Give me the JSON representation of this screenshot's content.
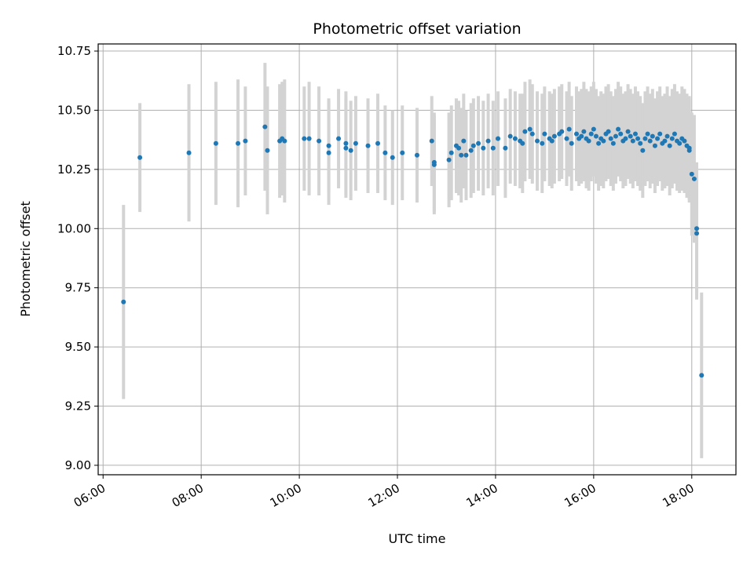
{
  "chart_data": {
    "type": "scatter",
    "title": "Photometric offset variation",
    "xlabel": "UTC time",
    "ylabel": "Photometric offset",
    "x_ticks": [
      "06:00",
      "08:00",
      "10:00",
      "12:00",
      "14:00",
      "16:00",
      "18:00"
    ],
    "y_ticks": [
      "9.00",
      "9.25",
      "9.50",
      "9.75",
      "10.00",
      "10.25",
      "10.50",
      "10.75"
    ],
    "xlim": [
      "05:54",
      "18:54"
    ],
    "ylim": [
      8.96,
      10.78
    ],
    "grid": true,
    "colors": {
      "point": "#1f77b4",
      "errorbar": "#d3d3d3",
      "grid": "#b0b0b0"
    },
    "series": [
      {
        "x": [
          "06:25",
          "06:45",
          "07:45",
          "08:18",
          "08:45",
          "08:54",
          "09:18",
          "09:21",
          "09:36",
          "09:39",
          "09:42",
          "10:06",
          "10:12",
          "10:24",
          "10:36",
          "10:36",
          "10:48",
          "10:57",
          "10:57",
          "11:03",
          "11:09",
          "11:24",
          "11:36",
          "11:45",
          "11:54",
          "12:06",
          "12:24",
          "12:42",
          "12:45",
          "12:45",
          "13:03",
          "13:06",
          "13:12",
          "13:15",
          "13:18",
          "13:21",
          "13:24",
          "13:30",
          "13:33",
          "13:39",
          "13:45",
          "13:51",
          "13:57",
          "14:03",
          "14:12",
          "14:18",
          "14:24",
          "14:30",
          "14:33",
          "14:36",
          "14:42",
          "14:45",
          "14:51",
          "14:57",
          "15:00",
          "15:06",
          "15:09",
          "15:12",
          "15:18",
          "15:21",
          "15:27",
          "15:30",
          "15:33",
          "15:39",
          "15:42",
          "15:45",
          "15:48",
          "15:51",
          "15:54",
          "15:57",
          "16:00",
          "16:03",
          "16:06",
          "16:09",
          "16:12",
          "16:15",
          "16:18",
          "16:21",
          "16:24",
          "16:27",
          "16:30",
          "16:33",
          "16:36",
          "16:39",
          "16:42",
          "16:45",
          "16:48",
          "16:51",
          "16:54",
          "16:57",
          "17:00",
          "17:03",
          "17:06",
          "17:09",
          "17:12",
          "17:15",
          "17:18",
          "17:21",
          "17:24",
          "17:27",
          "17:30",
          "17:33",
          "17:36",
          "17:39",
          "17:42",
          "17:45",
          "17:48",
          "17:51",
          "17:54",
          "17:57",
          "17:57",
          "18:00",
          "18:03",
          "18:06",
          "18:06",
          "18:12"
        ],
        "y": [
          9.69,
          10.3,
          10.32,
          10.36,
          10.36,
          10.37,
          10.43,
          10.33,
          10.37,
          10.38,
          10.37,
          10.38,
          10.38,
          10.37,
          10.35,
          10.32,
          10.38,
          10.34,
          10.36,
          10.33,
          10.36,
          10.35,
          10.36,
          10.32,
          10.3,
          10.32,
          10.31,
          10.37,
          10.28,
          10.27,
          10.29,
          10.32,
          10.35,
          10.34,
          10.31,
          10.37,
          10.31,
          10.33,
          10.35,
          10.36,
          10.34,
          10.37,
          10.34,
          10.38,
          10.34,
          10.39,
          10.38,
          10.37,
          10.36,
          10.41,
          10.42,
          10.4,
          10.37,
          10.36,
          10.4,
          10.38,
          10.37,
          10.39,
          10.4,
          10.41,
          10.38,
          10.42,
          10.36,
          10.4,
          10.38,
          10.39,
          10.41,
          10.38,
          10.37,
          10.4,
          10.42,
          10.39,
          10.36,
          10.38,
          10.37,
          10.4,
          10.41,
          10.38,
          10.36,
          10.39,
          10.42,
          10.4,
          10.37,
          10.38,
          10.41,
          10.39,
          10.37,
          10.4,
          10.38,
          10.36,
          10.33,
          10.38,
          10.4,
          10.37,
          10.39,
          10.35,
          10.38,
          10.4,
          10.36,
          10.37,
          10.39,
          10.35,
          10.38,
          10.4,
          10.37,
          10.36,
          10.38,
          10.37,
          10.35,
          10.33,
          10.34,
          10.23,
          10.21,
          10.0,
          9.98,
          9.38
        ],
        "err": [
          0.41,
          0.23,
          0.29,
          0.26,
          0.27,
          0.23,
          0.27,
          0.27,
          0.24,
          0.24,
          0.26,
          0.22,
          0.24,
          0.23,
          0.2,
          0.22,
          0.21,
          0.21,
          0.22,
          0.21,
          0.2,
          0.2,
          0.21,
          0.2,
          0.2,
          0.2,
          0.2,
          0.19,
          0.21,
          0.21,
          0.2,
          0.2,
          0.2,
          0.2,
          0.2,
          0.2,
          0.19,
          0.2,
          0.2,
          0.2,
          0.2,
          0.2,
          0.2,
          0.2,
          0.21,
          0.2,
          0.2,
          0.2,
          0.21,
          0.21,
          0.21,
          0.21,
          0.21,
          0.21,
          0.2,
          0.2,
          0.2,
          0.2,
          0.2,
          0.2,
          0.2,
          0.2,
          0.2,
          0.2,
          0.2,
          0.2,
          0.21,
          0.21,
          0.21,
          0.2,
          0.2,
          0.2,
          0.2,
          0.2,
          0.2,
          0.2,
          0.2,
          0.2,
          0.2,
          0.2,
          0.2,
          0.2,
          0.2,
          0.2,
          0.2,
          0.2,
          0.2,
          0.2,
          0.2,
          0.2,
          0.2,
          0.2,
          0.2,
          0.2,
          0.2,
          0.2,
          0.2,
          0.2,
          0.2,
          0.2,
          0.21,
          0.21,
          0.21,
          0.21,
          0.21,
          0.21,
          0.22,
          0.22,
          0.22,
          0.22,
          0.22,
          0.26,
          0.27,
          0.28,
          0.28,
          0.35
        ]
      }
    ]
  }
}
